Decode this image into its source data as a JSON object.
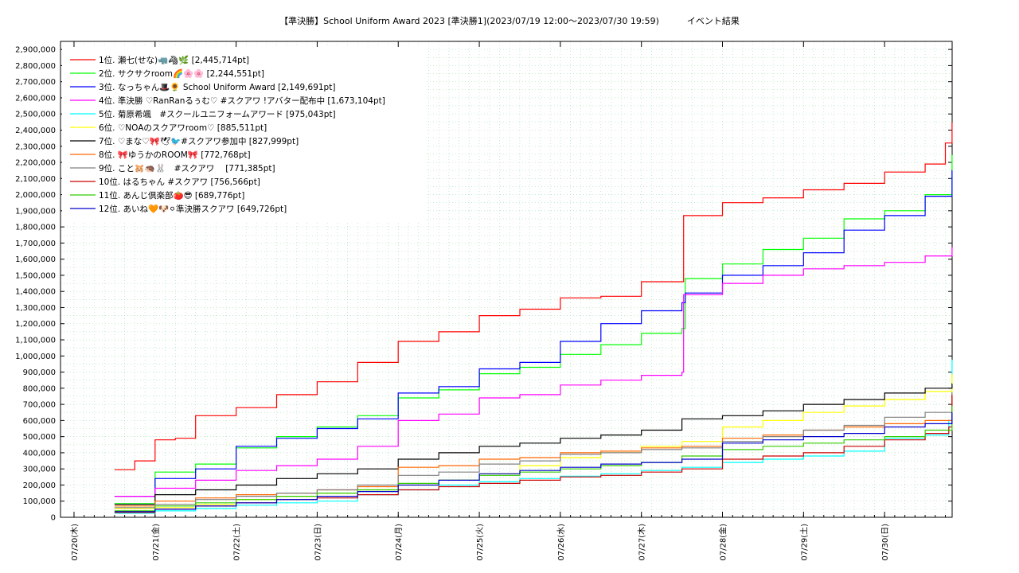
{
  "chart_data": {
    "type": "line",
    "title": "【準決勝】School Uniform Award 2023 [準決勝1](2023/07/19 12:00～2023/07/30 19:59)          イベント結果",
    "xlabel": "",
    "ylabel": "",
    "ylim": [
      0,
      2950000
    ],
    "yticks": [
      0,
      100000,
      200000,
      300000,
      400000,
      500000,
      600000,
      700000,
      800000,
      900000,
      1000000,
      1100000,
      1200000,
      1300000,
      1400000,
      1500000,
      1600000,
      1700000,
      1800000,
      1900000,
      2000000,
      2100000,
      2200000,
      2300000,
      2400000,
      2500000,
      2600000,
      2700000,
      2800000,
      2900000
    ],
    "ytick_labels": [
      "0",
      "100,000",
      "200,000",
      "300,000",
      "400,000",
      "500,000",
      "600,000",
      "700,000",
      "800,000",
      "900,000",
      "1,000,000",
      "1,100,000",
      "1,200,000",
      "1,300,000",
      "1,400,000",
      "1,500,000",
      "1,600,000",
      "1,700,000",
      "1,800,000",
      "1,900,000",
      "2,000,000",
      "2,100,000",
      "2,200,000",
      "2,300,000",
      "2,400,000",
      "2,500,000",
      "2,600,000",
      "2,700,000",
      "2,800,000",
      "2,900,000"
    ],
    "xlim": [
      "2023-07-19T20:00",
      "2023-07-30T20:00"
    ],
    "xticks": [
      "2023-07-20",
      "2023-07-21",
      "2023-07-22",
      "2023-07-23",
      "2023-07-24",
      "2023-07-25",
      "2023-07-26",
      "2023-07-27",
      "2023-07-28",
      "2023-07-29",
      "2023-07-30"
    ],
    "xtick_labels": [
      "07/20(木)",
      "07/21(金)",
      "07/22(土)",
      "07/23(日)",
      "07/24(月)",
      "07/25(火)",
      "07/26(水)",
      "07/27(木)",
      "07/28(金)",
      "07/29(土)",
      "07/30(日)"
    ],
    "grid": true,
    "legend_position": "top-left",
    "series": [
      {
        "name": "1位. 瀬七(せな)🦏🦓🌿 [2,445,714pt]",
        "color": "#ff0000",
        "x": [
          "2023-07-20T12:00",
          "2023-07-20T18:00",
          "2023-07-21T00:00",
          "2023-07-21T06:00",
          "2023-07-21T12:00",
          "2023-07-22T00:00",
          "2023-07-22T12:00",
          "2023-07-23T00:00",
          "2023-07-23T12:00",
          "2023-07-24T00:00",
          "2023-07-24T12:00",
          "2023-07-25T00:00",
          "2023-07-25T12:00",
          "2023-07-26T00:00",
          "2023-07-26T12:00",
          "2023-07-27T00:00",
          "2023-07-27T12:00",
          "2023-07-27T12:30",
          "2023-07-28T00:00",
          "2023-07-28T12:00",
          "2023-07-29T00:00",
          "2023-07-29T12:00",
          "2023-07-30T00:00",
          "2023-07-30T12:00",
          "2023-07-30T18:00",
          "2023-07-30T19:59"
        ],
        "y": [
          295000,
          350000,
          480000,
          490000,
          630000,
          680000,
          760000,
          840000,
          960000,
          1090000,
          1150000,
          1250000,
          1290000,
          1360000,
          1370000,
          1460000,
          1460000,
          1870000,
          1950000,
          1980000,
          2030000,
          2070000,
          2140000,
          2190000,
          2320000,
          2445714
        ]
      },
      {
        "name": "2位. サクサクroom🌈🌸🌸 [2,244,551pt]",
        "color": "#00ff00",
        "x": [
          "2023-07-20T12:00",
          "2023-07-21T00:00",
          "2023-07-21T12:00",
          "2023-07-22T00:00",
          "2023-07-22T12:00",
          "2023-07-23T00:00",
          "2023-07-23T12:00",
          "2023-07-24T00:00",
          "2023-07-24T12:00",
          "2023-07-25T00:00",
          "2023-07-25T12:00",
          "2023-07-26T00:00",
          "2023-07-26T12:00",
          "2023-07-27T00:00",
          "2023-07-27T12:00",
          "2023-07-27T13:00",
          "2023-07-28T00:00",
          "2023-07-28T12:00",
          "2023-07-29T00:00",
          "2023-07-29T12:00",
          "2023-07-30T00:00",
          "2023-07-30T12:00",
          "2023-07-30T19:59"
        ],
        "y": [
          85000,
          280000,
          330000,
          430000,
          500000,
          560000,
          630000,
          740000,
          790000,
          890000,
          930000,
          1010000,
          1070000,
          1140000,
          1170000,
          1480000,
          1570000,
          1660000,
          1730000,
          1850000,
          1900000,
          2000000,
          2244551
        ]
      },
      {
        "name": "3位. なっちゃん🎩🌻 School Uniform Award [2,149,691pt]",
        "color": "#0000ff",
        "x": [
          "2023-07-20T12:00",
          "2023-07-21T00:00",
          "2023-07-21T12:00",
          "2023-07-22T00:00",
          "2023-07-22T12:00",
          "2023-07-23T00:00",
          "2023-07-23T12:00",
          "2023-07-24T00:00",
          "2023-07-24T12:00",
          "2023-07-25T00:00",
          "2023-07-25T12:00",
          "2023-07-26T00:00",
          "2023-07-26T12:00",
          "2023-07-27T00:00",
          "2023-07-27T12:00",
          "2023-07-27T13:00",
          "2023-07-28T00:00",
          "2023-07-28T12:00",
          "2023-07-29T00:00",
          "2023-07-29T12:00",
          "2023-07-30T00:00",
          "2023-07-30T12:00",
          "2023-07-30T19:59"
        ],
        "y": [
          130000,
          240000,
          300000,
          440000,
          490000,
          550000,
          610000,
          770000,
          810000,
          920000,
          960000,
          1090000,
          1200000,
          1280000,
          1330000,
          1390000,
          1500000,
          1560000,
          1640000,
          1780000,
          1870000,
          1990000,
          2149691
        ]
      },
      {
        "name": "4位. 準決勝 ♡RanRanるぅむ♡ #スクアワ !アバター配布中 [1,673,104pt]",
        "color": "#ff00ff",
        "x": [
          "2023-07-20T12:00",
          "2023-07-21T00:00",
          "2023-07-21T12:00",
          "2023-07-22T00:00",
          "2023-07-22T12:00",
          "2023-07-23T00:00",
          "2023-07-23T12:00",
          "2023-07-24T00:00",
          "2023-07-24T12:00",
          "2023-07-25T00:00",
          "2023-07-25T12:00",
          "2023-07-26T00:00",
          "2023-07-26T12:00",
          "2023-07-27T00:00",
          "2023-07-27T12:00",
          "2023-07-27T12:30",
          "2023-07-28T00:00",
          "2023-07-28T12:00",
          "2023-07-29T00:00",
          "2023-07-29T12:00",
          "2023-07-30T00:00",
          "2023-07-30T12:00",
          "2023-07-30T19:59"
        ],
        "y": [
          130000,
          180000,
          230000,
          290000,
          320000,
          360000,
          440000,
          600000,
          640000,
          740000,
          760000,
          820000,
          850000,
          880000,
          900000,
          1380000,
          1450000,
          1500000,
          1540000,
          1560000,
          1580000,
          1620000,
          1673104
        ]
      },
      {
        "name": "5位. 菊原希颯　#スクールユニフォームアワード [975,043pt]",
        "color": "#00ffff",
        "x": [
          "2023-07-20T12:00",
          "2023-07-21T00:00",
          "2023-07-21T12:00",
          "2023-07-22T00:00",
          "2023-07-22T12:00",
          "2023-07-23T00:00",
          "2023-07-23T12:00",
          "2023-07-24T00:00",
          "2023-07-24T12:00",
          "2023-07-25T00:00",
          "2023-07-25T12:00",
          "2023-07-26T00:00",
          "2023-07-26T12:00",
          "2023-07-27T00:00",
          "2023-07-27T12:00",
          "2023-07-28T00:00",
          "2023-07-28T12:00",
          "2023-07-29T00:00",
          "2023-07-29T12:00",
          "2023-07-30T00:00",
          "2023-07-30T12:00",
          "2023-07-30T19:00",
          "2023-07-30T19:59"
        ],
        "y": [
          25000,
          40000,
          55000,
          75000,
          90000,
          100000,
          140000,
          170000,
          200000,
          220000,
          240000,
          255000,
          270000,
          290000,
          310000,
          340000,
          360000,
          380000,
          410000,
          490000,
          510000,
          600000,
          975043
        ]
      },
      {
        "name": "6位. ♡NOAのスクアワroom♡ [885,511pt]",
        "color": "#ffff00",
        "x": [
          "2023-07-20T12:00",
          "2023-07-21T00:00",
          "2023-07-21T12:00",
          "2023-07-22T00:00",
          "2023-07-22T12:00",
          "2023-07-23T00:00",
          "2023-07-23T12:00",
          "2023-07-24T00:00",
          "2023-07-24T12:00",
          "2023-07-25T00:00",
          "2023-07-25T12:00",
          "2023-07-26T00:00",
          "2023-07-26T12:00",
          "2023-07-27T00:00",
          "2023-07-27T12:00",
          "2023-07-28T00:00",
          "2023-07-28T12:00",
          "2023-07-29T00:00",
          "2023-07-29T12:00",
          "2023-07-30T00:00",
          "2023-07-30T12:00",
          "2023-07-30T19:59"
        ],
        "y": [
          55000,
          60000,
          80000,
          110000,
          130000,
          150000,
          170000,
          200000,
          230000,
          270000,
          320000,
          370000,
          400000,
          440000,
          470000,
          560000,
          600000,
          650000,
          690000,
          730000,
          780000,
          885511
        ]
      },
      {
        "name": "7位. ♡まな♡🎀🕊🐦#スクアワ参加中 [827,999pt]",
        "color": "#000000",
        "x": [
          "2023-07-20T12:00",
          "2023-07-21T00:00",
          "2023-07-21T12:00",
          "2023-07-22T00:00",
          "2023-07-22T12:00",
          "2023-07-23T00:00",
          "2023-07-23T12:00",
          "2023-07-24T00:00",
          "2023-07-24T12:00",
          "2023-07-25T00:00",
          "2023-07-25T12:00",
          "2023-07-26T00:00",
          "2023-07-26T12:00",
          "2023-07-27T00:00",
          "2023-07-27T12:00",
          "2023-07-28T00:00",
          "2023-07-28T12:00",
          "2023-07-29T00:00",
          "2023-07-29T12:00",
          "2023-07-30T00:00",
          "2023-07-30T12:00",
          "2023-07-30T19:59"
        ],
        "y": [
          80000,
          140000,
          170000,
          200000,
          240000,
          270000,
          300000,
          360000,
          400000,
          440000,
          460000,
          490000,
          510000,
          540000,
          610000,
          630000,
          660000,
          700000,
          730000,
          770000,
          800000,
          827999
        ]
      },
      {
        "name": "8位. 🎀ゆうかのROOM🎀 [772,768pt]",
        "color": "#ff6600",
        "x": [
          "2023-07-20T12:00",
          "2023-07-21T00:00",
          "2023-07-21T12:00",
          "2023-07-22T00:00",
          "2023-07-22T12:00",
          "2023-07-23T00:00",
          "2023-07-23T12:00",
          "2023-07-24T00:00",
          "2023-07-24T12:00",
          "2023-07-25T00:00",
          "2023-07-25T12:00",
          "2023-07-26T00:00",
          "2023-07-26T12:00",
          "2023-07-27T00:00",
          "2023-07-27T12:00",
          "2023-07-28T00:00",
          "2023-07-28T12:00",
          "2023-07-29T00:00",
          "2023-07-29T12:00",
          "2023-07-30T00:00",
          "2023-07-30T12:00",
          "2023-07-30T19:59"
        ],
        "y": [
          70000,
          100000,
          120000,
          140000,
          150000,
          170000,
          190000,
          310000,
          320000,
          360000,
          370000,
          400000,
          410000,
          430000,
          440000,
          490000,
          510000,
          540000,
          560000,
          580000,
          600000,
          772768
        ]
      },
      {
        "name": "9位. こと🐹🦔🐰　#スクアワ　 [771,385pt]",
        "color": "#808080",
        "x": [
          "2023-07-20T12:00",
          "2023-07-21T00:00",
          "2023-07-21T12:00",
          "2023-07-22T00:00",
          "2023-07-22T12:00",
          "2023-07-23T00:00",
          "2023-07-23T12:00",
          "2023-07-24T00:00",
          "2023-07-24T12:00",
          "2023-07-25T00:00",
          "2023-07-25T12:00",
          "2023-07-26T00:00",
          "2023-07-26T12:00",
          "2023-07-27T00:00",
          "2023-07-27T12:00",
          "2023-07-28T00:00",
          "2023-07-28T12:00",
          "2023-07-29T00:00",
          "2023-07-29T12:00",
          "2023-07-30T00:00",
          "2023-07-30T12:00",
          "2023-07-30T19:59"
        ],
        "y": [
          60000,
          80000,
          110000,
          130000,
          150000,
          170000,
          200000,
          260000,
          280000,
          330000,
          350000,
          390000,
          400000,
          420000,
          430000,
          470000,
          500000,
          540000,
          570000,
          620000,
          650000,
          771385
        ]
      },
      {
        "name": "10位. はるちゃん #スクアワ [756,566pt]",
        "color": "#cc0000",
        "x": [
          "2023-07-20T12:00",
          "2023-07-21T00:00",
          "2023-07-21T12:00",
          "2023-07-22T00:00",
          "2023-07-22T12:00",
          "2023-07-23T00:00",
          "2023-07-23T12:00",
          "2023-07-24T00:00",
          "2023-07-24T12:00",
          "2023-07-25T00:00",
          "2023-07-25T12:00",
          "2023-07-26T00:00",
          "2023-07-26T12:00",
          "2023-07-27T00:00",
          "2023-07-27T12:00",
          "2023-07-28T00:00",
          "2023-07-28T12:00",
          "2023-07-29T00:00",
          "2023-07-29T12:00",
          "2023-07-30T00:00",
          "2023-07-30T12:00",
          "2023-07-30T19:00",
          "2023-07-30T19:59"
        ],
        "y": [
          30000,
          50000,
          70000,
          90000,
          110000,
          120000,
          140000,
          170000,
          190000,
          210000,
          230000,
          250000,
          260000,
          280000,
          300000,
          360000,
          380000,
          400000,
          440000,
          480000,
          520000,
          560000,
          756566
        ]
      },
      {
        "name": "11位. あんじ倶楽部🍅😎 [689,776pt]",
        "color": "#33cc00",
        "x": [
          "2023-07-20T12:00",
          "2023-07-21T00:00",
          "2023-07-21T12:00",
          "2023-07-22T00:00",
          "2023-07-22T12:00",
          "2023-07-23T00:00",
          "2023-07-23T12:00",
          "2023-07-24T00:00",
          "2023-07-24T12:00",
          "2023-07-25T00:00",
          "2023-07-25T12:00",
          "2023-07-26T00:00",
          "2023-07-26T12:00",
          "2023-07-27T00:00",
          "2023-07-27T12:00",
          "2023-07-28T00:00",
          "2023-07-28T12:00",
          "2023-07-29T00:00",
          "2023-07-29T12:00",
          "2023-07-30T00:00",
          "2023-07-30T12:00",
          "2023-07-30T19:59"
        ],
        "y": [
          40000,
          70000,
          90000,
          110000,
          130000,
          150000,
          170000,
          210000,
          230000,
          260000,
          280000,
          300000,
          320000,
          340000,
          380000,
          420000,
          440000,
          460000,
          480000,
          500000,
          540000,
          689776
        ]
      },
      {
        "name": "12位. あいね🧡🐶⚪準決勝スクアワ [649,726pt]",
        "color": "#0000cc",
        "x": [
          "2023-07-20T12:00",
          "2023-07-21T00:00",
          "2023-07-21T12:00",
          "2023-07-22T00:00",
          "2023-07-22T12:00",
          "2023-07-23T00:00",
          "2023-07-23T12:00",
          "2023-07-24T00:00",
          "2023-07-24T12:00",
          "2023-07-25T00:00",
          "2023-07-25T12:00",
          "2023-07-26T00:00",
          "2023-07-26T12:00",
          "2023-07-27T00:00",
          "2023-07-27T12:00",
          "2023-07-28T00:00",
          "2023-07-28T12:00",
          "2023-07-29T00:00",
          "2023-07-29T12:00",
          "2023-07-30T00:00",
          "2023-07-30T12:00",
          "2023-07-30T19:59"
        ],
        "y": [
          35000,
          50000,
          70000,
          90000,
          110000,
          130000,
          160000,
          200000,
          230000,
          270000,
          290000,
          310000,
          330000,
          340000,
          360000,
          460000,
          480000,
          500000,
          520000,
          560000,
          580000,
          649726
        ]
      }
    ]
  }
}
